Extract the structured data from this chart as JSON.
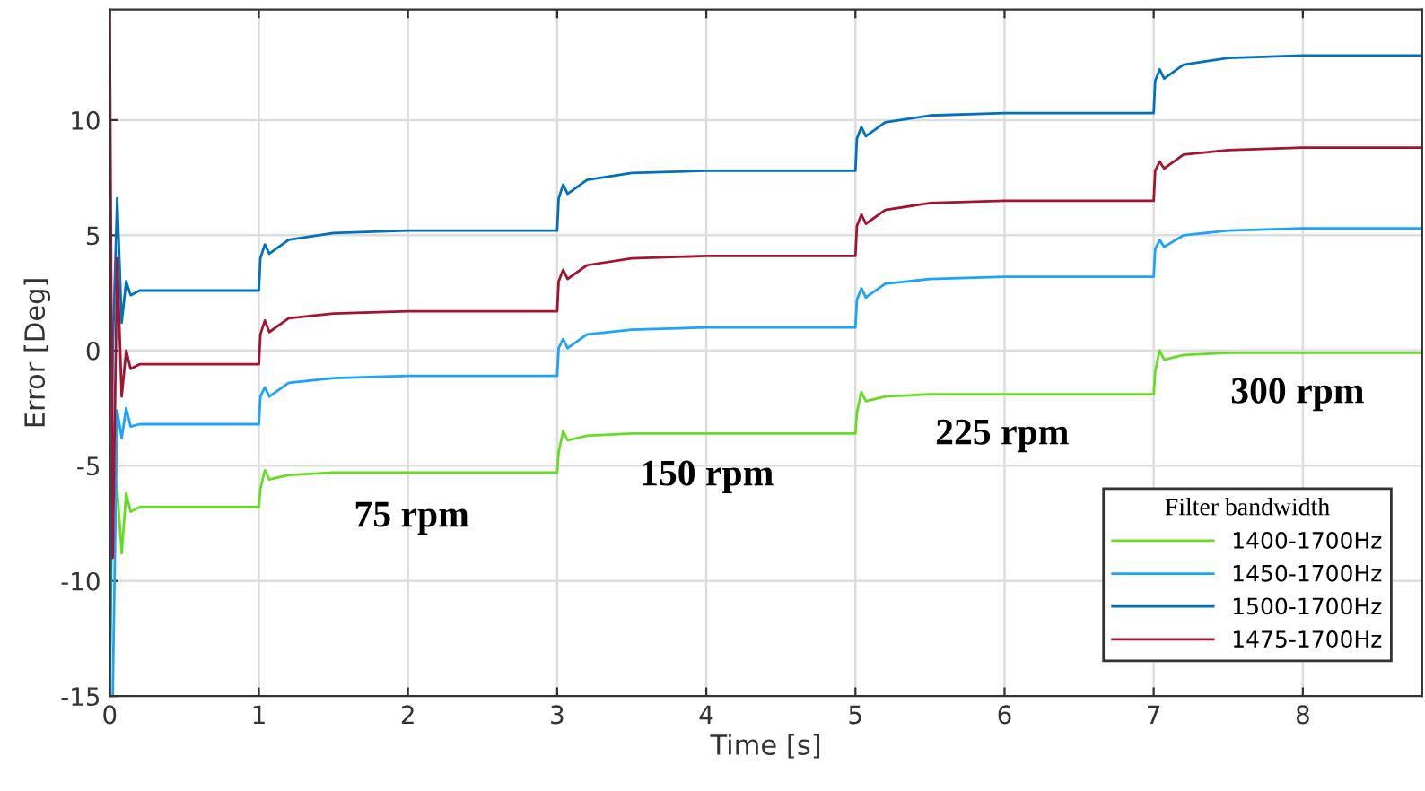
{
  "chart_data": {
    "type": "line",
    "xlabel": "Time [s]",
    "ylabel": "Error [Deg]",
    "legend_title": "Filter bandwidth",
    "legend": "bottom right",
    "grid": true,
    "line_style": "solid",
    "xlim": [
      0,
      8.8
    ],
    "ylim": [
      -15,
      14.8
    ],
    "xticks": [
      0,
      1,
      2,
      3,
      4,
      5,
      6,
      7,
      8
    ],
    "yticks": [
      -15,
      -10,
      -5,
      0,
      5,
      10
    ],
    "x": [
      0,
      0.02,
      0.05,
      0.08,
      0.11,
      0.14,
      0.2,
      1.0,
      1.01,
      1.04,
      1.07,
      1.2,
      1.5,
      2.0,
      3.0,
      3.01,
      3.04,
      3.07,
      3.2,
      3.5,
      4.0,
      5.0,
      5.01,
      5.04,
      5.07,
      5.2,
      5.5,
      6.0,
      7.0,
      7.01,
      7.04,
      7.07,
      7.2,
      7.5,
      8.0,
      8.8
    ],
    "series": [
      {
        "name": "1400-1700Hz",
        "color": "#66dd22",
        "values": [
          -15,
          -5,
          -6.0,
          -8.8,
          -6.2,
          -7.0,
          -6.8,
          -6.8,
          -6.0,
          -5.2,
          -5.6,
          -5.4,
          -5.3,
          -5.3,
          -5.3,
          -4.4,
          -3.5,
          -3.9,
          -3.7,
          -3.6,
          -3.6,
          -3.6,
          -2.7,
          -1.8,
          -2.2,
          -2.0,
          -1.9,
          -1.9,
          -1.9,
          -0.9,
          0.0,
          -0.4,
          -0.2,
          -0.1,
          -0.1,
          -0.1
        ]
      },
      {
        "name": "1450-1700Hz",
        "color": "#1aa3ff",
        "values": [
          -15,
          -15,
          -2.6,
          -3.8,
          -2.5,
          -3.3,
          -3.2,
          -3.2,
          -2.0,
          -1.6,
          -2.0,
          -1.4,
          -1.2,
          -1.1,
          -1.1,
          0.1,
          0.5,
          0.1,
          0.7,
          0.9,
          1.0,
          1.0,
          2.2,
          2.7,
          2.3,
          2.9,
          3.1,
          3.2,
          3.2,
          4.4,
          4.8,
          4.5,
          5.0,
          5.2,
          5.3,
          5.3
        ]
      },
      {
        "name": "1500-1700Hz",
        "color": "#0072bd",
        "values": [
          -15,
          0,
          6.6,
          1.2,
          3.0,
          2.4,
          2.6,
          2.6,
          4.0,
          4.6,
          4.2,
          4.8,
          5.1,
          5.2,
          5.2,
          6.6,
          7.2,
          6.8,
          7.4,
          7.7,
          7.8,
          7.8,
          9.2,
          9.7,
          9.3,
          9.9,
          10.2,
          10.3,
          10.3,
          11.7,
          12.2,
          11.8,
          12.4,
          12.7,
          12.8,
          12.8
        ]
      },
      {
        "name": "1475-1700Hz",
        "color": "#a2142f",
        "values": [
          14.8,
          -9,
          4.0,
          -2.0,
          0.0,
          -0.8,
          -0.6,
          -0.6,
          0.7,
          1.3,
          0.8,
          1.4,
          1.6,
          1.7,
          1.7,
          3.0,
          3.5,
          3.1,
          3.7,
          4.0,
          4.1,
          4.1,
          5.4,
          5.9,
          5.5,
          6.1,
          6.4,
          6.5,
          6.5,
          7.8,
          8.2,
          7.9,
          8.5,
          8.7,
          8.8,
          8.8
        ]
      }
    ],
    "annotations": [
      "75 rpm",
      "150 rpm",
      "225 rpm",
      "300 rpm"
    ]
  }
}
